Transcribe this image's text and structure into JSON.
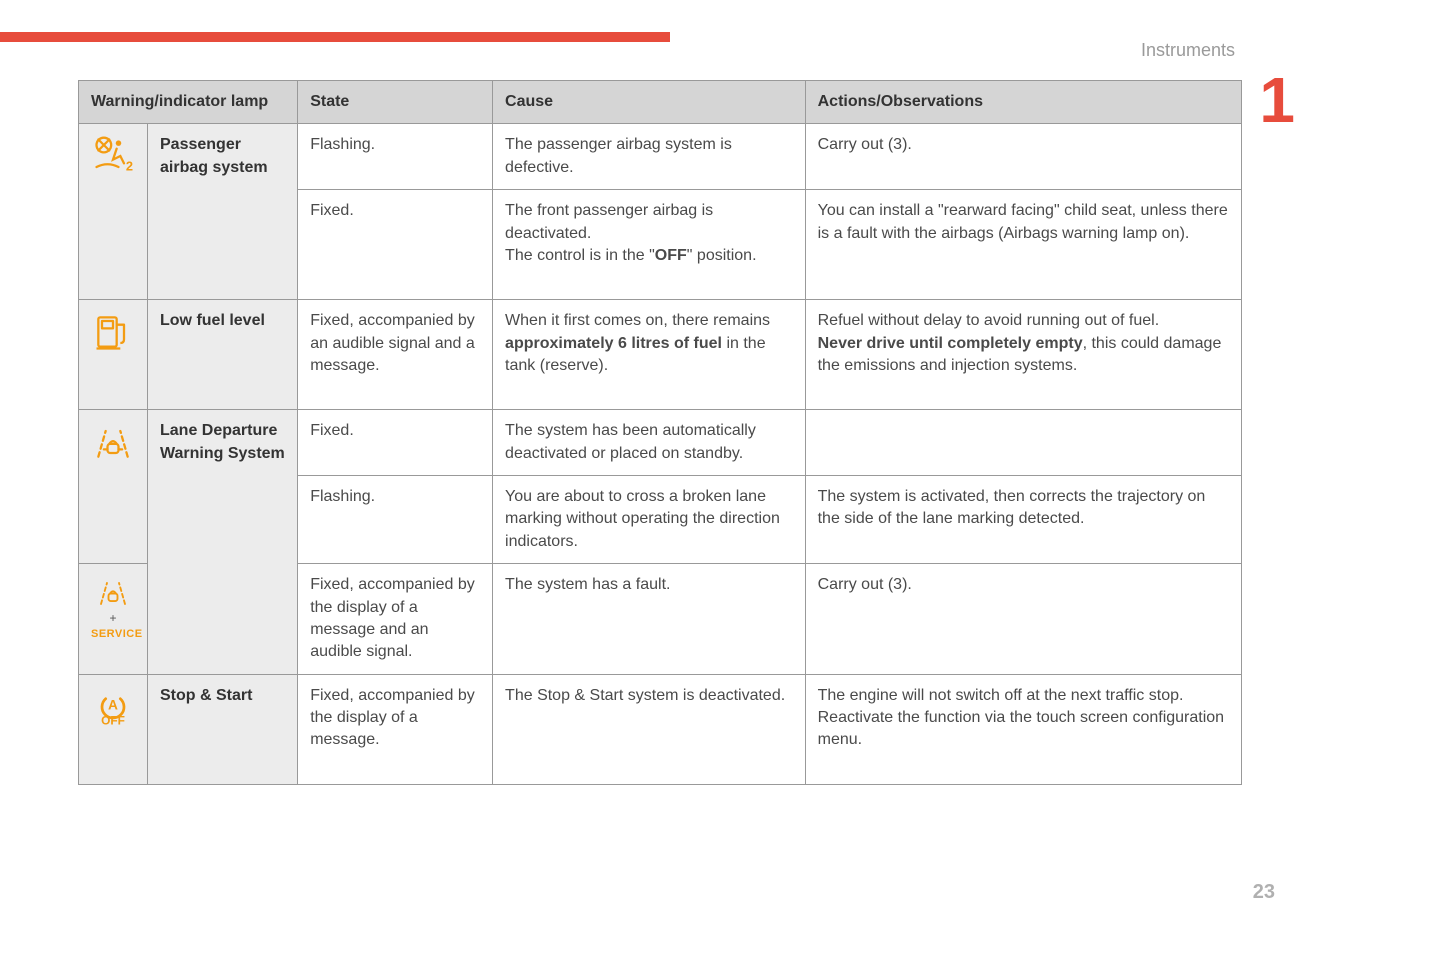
{
  "section_label": "Instruments",
  "chapter_number": "1",
  "page_number": "23",
  "colors": {
    "accent_red": "#e74c3c",
    "icon_amber": "#f39c12",
    "header_bg": "#d5d5d5",
    "label_bg": "#ececec",
    "border": "#999999",
    "text": "#4a4a4a",
    "muted": "#9a9a9a"
  },
  "table": {
    "headers": {
      "lamp": "Warning/indicator lamp",
      "state": "State",
      "cause": "Cause",
      "actions": "Actions/Observations"
    },
    "groups": [
      {
        "icon": "airbag",
        "name": "Passenger airbag system",
        "rows": [
          {
            "state": "Flashing.",
            "cause_html": "The passenger airbag system is defective.",
            "action_html": "Carry out (3)."
          },
          {
            "state": "Fixed.",
            "cause_html": "The front passenger airbag is deactivated.<br>The control is in the \"<b class='inner'>OFF</b>\" position.",
            "action_html": "You can install a \"rearward facing\" child seat, unless there is a fault with the airbags (Airbags warning lamp on)."
          }
        ]
      },
      {
        "icon": "fuel",
        "name": "Low fuel level",
        "rows": [
          {
            "state": "Fixed, accompanied by an audible signal and a message.",
            "cause_html": "When it first comes on, there remains <b class='inner'>approximately 6 litres of fuel</b> in the tank (reserve).",
            "action_html": "Refuel without delay to avoid running out of fuel.<br><b class='inner'>Never drive until completely empty</b>, this could damage the emissions and injection systems."
          }
        ]
      },
      {
        "icon": "lane",
        "icon2": "lane_service",
        "name": "Lane Departure Warning System",
        "rows": [
          {
            "state": "Fixed.",
            "cause_html": "The system has been automatically deactivated or placed on standby.",
            "action_html": ""
          },
          {
            "state": "Flashing.",
            "cause_html": "You are about to cross a broken lane marking without operating the direction indicators.",
            "action_html": "The system is activated, then corrects the trajectory on the side of the lane marking detected."
          },
          {
            "state": "Fixed, accompanied by the display of a message and an audible signal.",
            "cause_html": "The system has a fault.",
            "action_html": "Carry out (3)."
          }
        ]
      },
      {
        "icon": "stopstart",
        "name": "Stop & Start",
        "rows": [
          {
            "state": "Fixed, accompanied by the display of a message.",
            "cause_html": "The Stop & Start system is deactivated.",
            "action_html": "The engine will not switch off at the next traffic stop.<br>Reactivate the function via the touch screen configuration menu."
          }
        ]
      }
    ]
  }
}
